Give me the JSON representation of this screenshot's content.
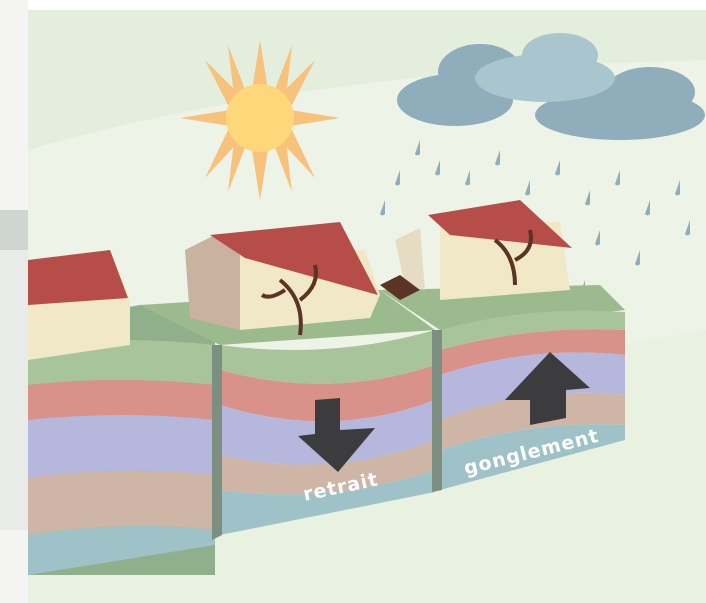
{
  "labels": {
    "shrink": "retrait",
    "swell": "gonglement"
  }
}
